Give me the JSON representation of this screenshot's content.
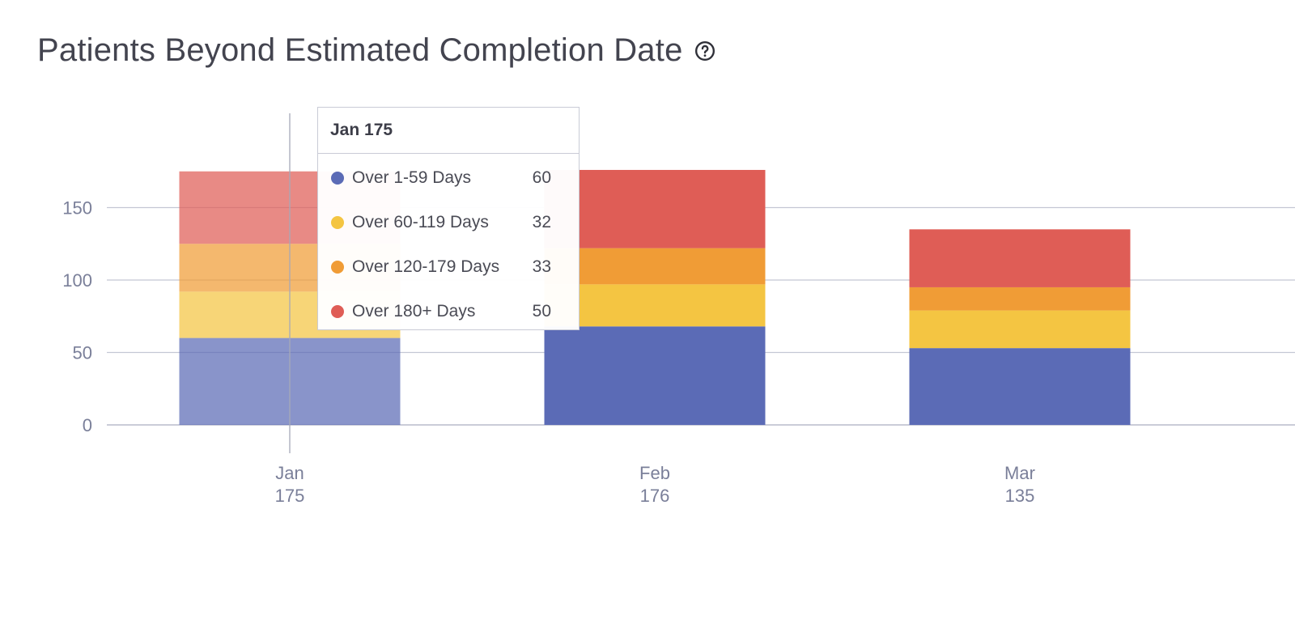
{
  "header": {
    "title": "Patients Beyond Estimated Completion Date",
    "help_icon": "question-circle-icon"
  },
  "colors": {
    "over_1_59": "#5b6bb6",
    "over_60_119": "#f4c542",
    "over_120_179": "#f09c36",
    "over_180": "#df5d56",
    "axis_text": "#7a7f99",
    "grid": "#c4c7d4"
  },
  "tooltip": {
    "title": "Jan 175",
    "rows": [
      {
        "label": "Over 1-59 Days",
        "value": "60",
        "color": "#5b6bb6"
      },
      {
        "label": "Over 60-119 Days",
        "value": "32",
        "color": "#f4c542"
      },
      {
        "label": "Over 120-179 Days",
        "value": "33",
        "color": "#f09c36"
      },
      {
        "label": "Over 180+ Days",
        "value": "50",
        "color": "#df5d56"
      }
    ]
  },
  "chart_data": {
    "type": "bar",
    "stacked": true,
    "title": "Patients Beyond Estimated Completion Date",
    "categories": [
      "Jan",
      "Feb",
      "Mar"
    ],
    "totals": [
      "175",
      "176",
      "135"
    ],
    "series": [
      {
        "name": "Over 1-59 Days",
        "values": [
          60,
          68,
          53
        ],
        "color": "#5b6bb6"
      },
      {
        "name": "Over 60-119 Days",
        "values": [
          32,
          29,
          26
        ],
        "color": "#f4c542"
      },
      {
        "name": "Over 120-179 Days",
        "values": [
          33,
          25,
          16
        ],
        "color": "#f09c36"
      },
      {
        "name": "Over 180+ Days",
        "values": [
          50,
          54,
          40
        ],
        "color": "#df5d56"
      }
    ],
    "yticks": [
      0,
      50,
      100,
      150
    ],
    "ylim": [
      0,
      205
    ],
    "grid": true,
    "highlighted_category": "Jan"
  }
}
